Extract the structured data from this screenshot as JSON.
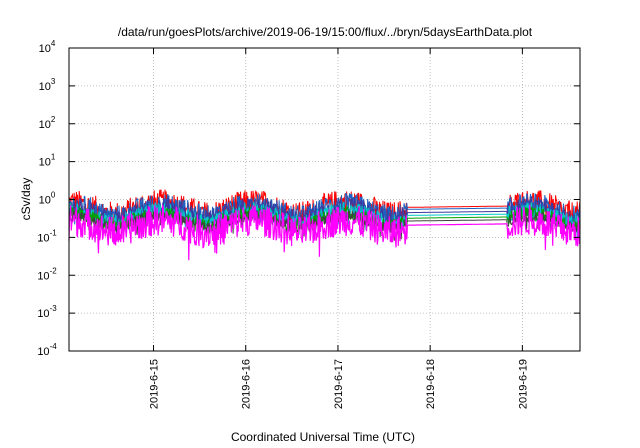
{
  "chart_data": {
    "type": "line",
    "title": "/data/run/goesPlots/archive/2019-06-19/15:00/flux/../bryn/5daysEarthData.plot",
    "xlabel": "Coordinated Universal Time (UTC)",
    "ylabel": "cSv/day",
    "y_scale": "log",
    "ylim": [
      0.0001,
      10000
    ],
    "y_ticks": [
      {
        "base": "10",
        "exp": "-4",
        "value": 0.0001
      },
      {
        "base": "10",
        "exp": "-3",
        "value": 0.001
      },
      {
        "base": "10",
        "exp": "-2",
        "value": 0.01
      },
      {
        "base": "10",
        "exp": "-1",
        "value": 0.1
      },
      {
        "base": "10",
        "exp": "0",
        "value": 1
      },
      {
        "base": "10",
        "exp": "1",
        "value": 10
      },
      {
        "base": "10",
        "exp": "2",
        "value": 100
      },
      {
        "base": "10",
        "exp": "3",
        "value": 1000
      },
      {
        "base": "10",
        "exp": "4",
        "value": 10000
      }
    ],
    "xlim": [
      "2019-06-14T02:00",
      "2019-06-19T15:00"
    ],
    "x_ticks": [
      {
        "label": "2019-6-15",
        "value": "2019-06-15T00:00"
      },
      {
        "label": "2019-6-16",
        "value": "2019-06-16T00:00"
      },
      {
        "label": "2019-6-17",
        "value": "2019-06-17T00:00"
      },
      {
        "label": "2019-6-18",
        "value": "2019-06-18T00:00"
      },
      {
        "label": "2019-6-19",
        "value": "2019-06-19T00:00"
      }
    ],
    "grid": true,
    "data_gap": [
      "2019-06-17T18:00",
      "2019-06-18T20:00"
    ],
    "series": [
      {
        "color": "#ff0000",
        "base": 0.62,
        "noise": 0.35
      },
      {
        "color": "#2060c0",
        "base": 0.55,
        "noise": 0.3
      },
      {
        "color": "#3a3aa0",
        "base": 0.45,
        "noise": 0.28
      },
      {
        "color": "#00c8c8",
        "base": 0.38,
        "noise": 0.22
      },
      {
        "color": "#00a000",
        "base": 0.32,
        "noise": 0.18
      },
      {
        "color": "#404040",
        "base": 0.27,
        "noise": 0.15
      },
      {
        "color": "#ff00ff",
        "base": 0.21,
        "noise": 0.3
      }
    ]
  }
}
